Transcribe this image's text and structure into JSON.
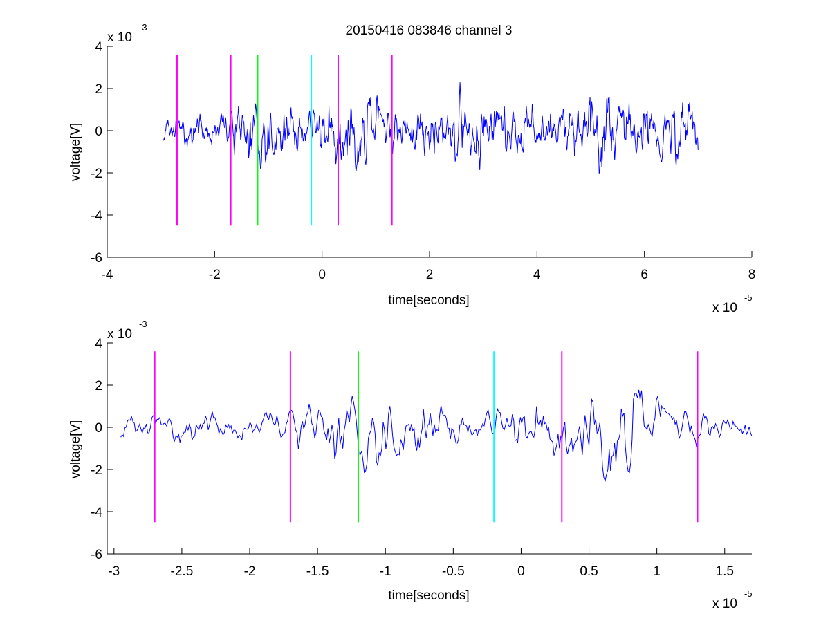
{
  "title": "20150416 083846 channel 3",
  "chart_data": [
    {
      "type": "line",
      "xlabel": "time[seconds]",
      "ylabel": "voltage[V]",
      "x_exponent_label": "x 10",
      "x_exponent": "-5",
      "y_exponent_label": "x 10",
      "y_exponent": "-3",
      "xlim": [
        -4,
        8
      ],
      "ylim": [
        -6,
        4
      ],
      "xticks": [
        "-4",
        "-2",
        "0",
        "2",
        "4",
        "6",
        "8"
      ],
      "xtick_values": [
        -4,
        -2,
        0,
        2,
        4,
        6,
        8
      ],
      "yticks": [
        "-6",
        "-4",
        "-2",
        "0",
        "2",
        "4"
      ],
      "ytick_values": [
        -6,
        -4,
        -2,
        0,
        2,
        4
      ],
      "grid": false,
      "series": [
        {
          "color": "#0000ff",
          "x_range": [
            -2.95,
            7.0
          ],
          "samples": 1000,
          "seed": 31,
          "envelope": [
            [
              -2.95,
              0.55
            ],
            [
              -2.0,
              0.6
            ],
            [
              -1.6,
              0.9
            ],
            [
              -1.3,
              1.4
            ],
            [
              -0.8,
              0.95
            ],
            [
              -0.3,
              0.75
            ],
            [
              0.3,
              1.35
            ],
            [
              0.9,
              1.25
            ],
            [
              1.3,
              0.85
            ],
            [
              2.0,
              0.95
            ],
            [
              2.8,
              1.3
            ],
            [
              3.5,
              1.0
            ],
            [
              4.4,
              0.75
            ],
            [
              4.8,
              1.2
            ],
            [
              5.2,
              1.55
            ],
            [
              5.8,
              0.95
            ],
            [
              6.3,
              1.45
            ],
            [
              7.0,
              1.15
            ]
          ]
        }
      ],
      "markers": [
        {
          "x": -2.7,
          "ymin": -4.5,
          "ymax": 3.6,
          "color": "#ff00ff"
        },
        {
          "x": -1.7,
          "ymin": -4.5,
          "ymax": 3.6,
          "color": "#ff00ff"
        },
        {
          "x": -1.2,
          "ymin": -4.5,
          "ymax": 3.6,
          "color": "#00ff00"
        },
        {
          "x": -0.2,
          "ymin": -4.5,
          "ymax": 3.6,
          "color": "#00ffff"
        },
        {
          "x": 0.3,
          "ymin": -4.5,
          "ymax": 3.6,
          "color": "#ff00ff"
        },
        {
          "x": 1.3,
          "ymin": -4.5,
          "ymax": 3.6,
          "color": "#ff00ff"
        }
      ]
    },
    {
      "type": "line",
      "xlabel": "time[seconds]",
      "ylabel": "voltage[V]",
      "x_exponent_label": "x 10",
      "x_exponent": "-5",
      "y_exponent_label": "x 10",
      "y_exponent": "-3",
      "xlim": [
        -3.05,
        1.7
      ],
      "ylim": [
        -6,
        4
      ],
      "xticks": [
        "-3",
        "-2.5",
        "-2",
        "-1.5",
        "-1",
        "-0.5",
        "0",
        "0.5",
        "1",
        "1.5"
      ],
      "xtick_values": [
        -3,
        -2.5,
        -2,
        -1.5,
        -1,
        -0.5,
        0,
        0.5,
        1,
        1.5
      ],
      "yticks": [
        "-6",
        "-4",
        "-2",
        "0",
        "2",
        "4"
      ],
      "ytick_values": [
        -6,
        -4,
        -2,
        0,
        2,
        4
      ],
      "grid": false,
      "series": [
        {
          "color": "#0000ff",
          "x_range": [
            -2.95,
            1.7
          ],
          "samples": 470,
          "seed": 31,
          "envelope": [
            [
              -2.95,
              0.55
            ],
            [
              -2.0,
              0.55
            ],
            [
              -1.6,
              0.8
            ],
            [
              -1.4,
              1.5
            ],
            [
              -1.2,
              1.55
            ],
            [
              -0.8,
              1.1
            ],
            [
              -0.4,
              0.55
            ],
            [
              -0.1,
              0.85
            ],
            [
              0.3,
              1.15
            ],
            [
              0.5,
              1.6
            ],
            [
              0.75,
              1.85
            ],
            [
              1.0,
              1.0
            ],
            [
              1.3,
              0.75
            ],
            [
              1.7,
              0.5
            ]
          ]
        }
      ],
      "markers": [
        {
          "x": -2.7,
          "ymin": -4.5,
          "ymax": 3.6,
          "color": "#ff00ff"
        },
        {
          "x": -1.7,
          "ymin": -4.5,
          "ymax": 3.6,
          "color": "#ff00ff"
        },
        {
          "x": -1.2,
          "ymin": -4.5,
          "ymax": 3.6,
          "color": "#00ff00"
        },
        {
          "x": -0.2,
          "ymin": -4.5,
          "ymax": 3.6,
          "color": "#00ffff"
        },
        {
          "x": 0.3,
          "ymin": -4.5,
          "ymax": 3.6,
          "color": "#ff00ff"
        },
        {
          "x": 1.3,
          "ymin": -4.5,
          "ymax": 3.6,
          "color": "#ff00ff"
        }
      ]
    }
  ]
}
